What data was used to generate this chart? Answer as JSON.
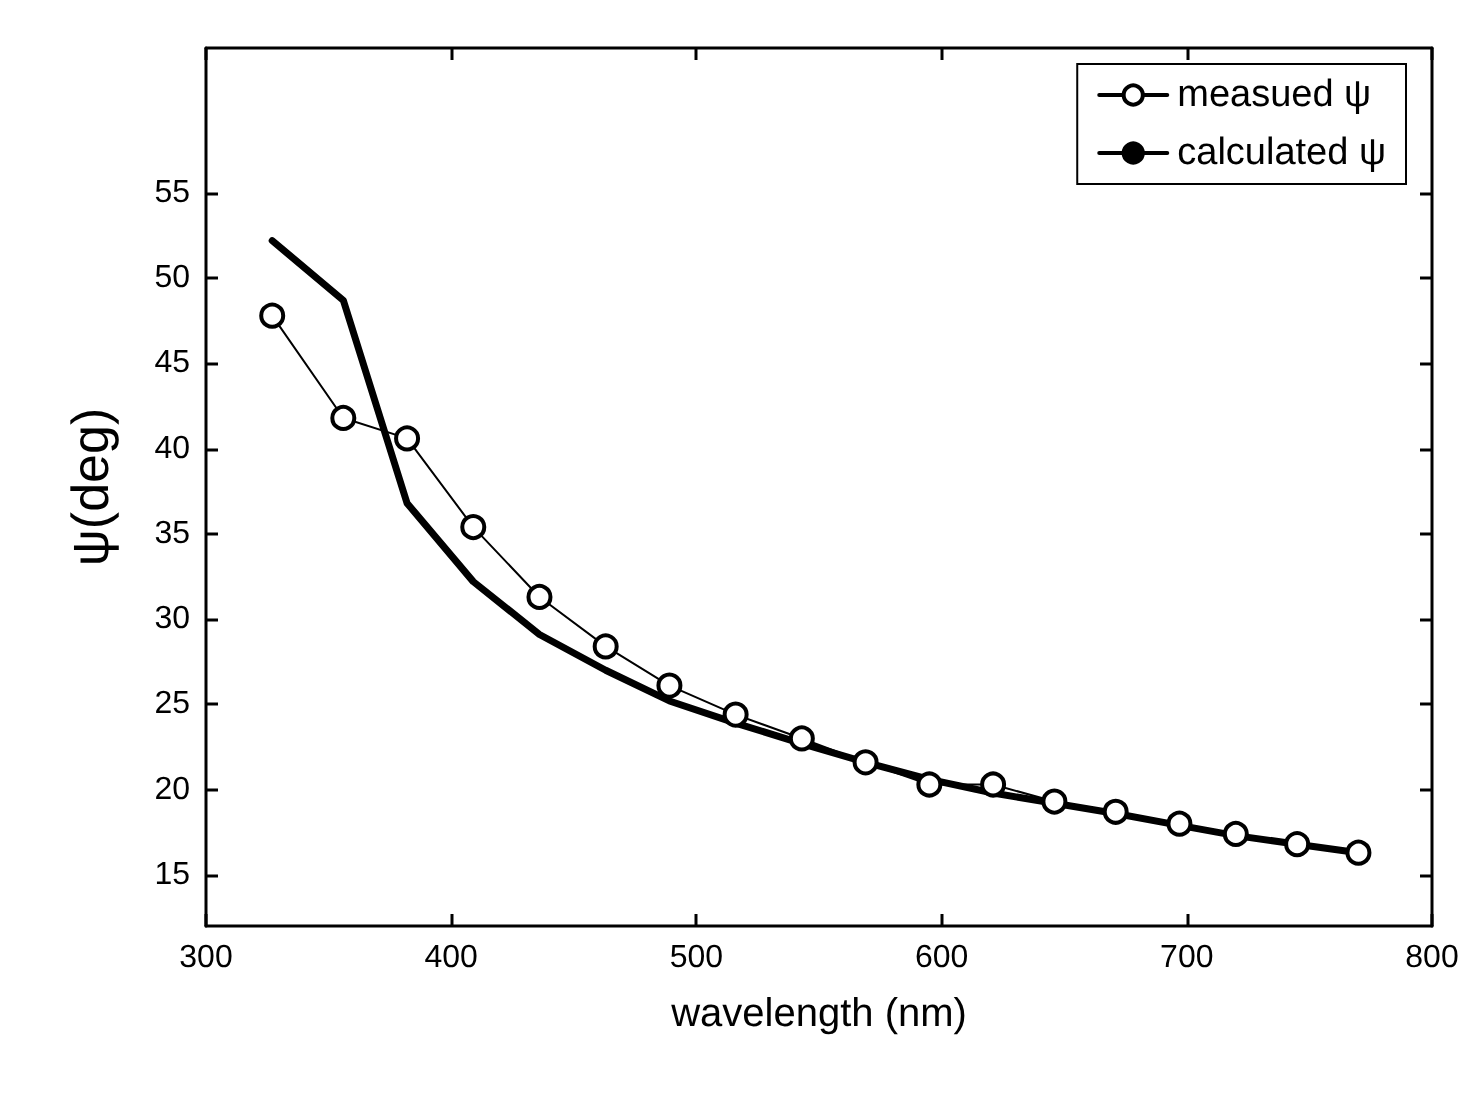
{
  "chart_data": {
    "type": "line",
    "xlabel": "wavelength (nm)",
    "ylabel": "ψ(deg)",
    "xlim": [
      300,
      800
    ],
    "xticks": [
      300,
      400,
      500,
      600,
      700,
      800
    ],
    "ylim": [
      12,
      63.5
    ],
    "yticks": [
      15,
      20,
      25,
      30,
      35,
      40,
      45,
      50,
      55
    ],
    "grid": false,
    "legend": "top right",
    "series": [
      {
        "name": "measued ψ",
        "color": "#000000",
        "marker": "circle",
        "x": [
          327,
          356,
          382,
          409,
          436,
          463,
          489,
          516,
          543,
          569,
          595,
          621,
          646,
          671,
          697,
          720,
          745,
          770
        ],
        "values": [
          47.8,
          41.8,
          40.6,
          35.4,
          31.3,
          28.4,
          26.1,
          24.4,
          23.0,
          21.6,
          20.3,
          20.3,
          19.3,
          18.7,
          18.0,
          17.4,
          16.8,
          16.3
        ]
      },
      {
        "name": "calculated ψ",
        "color": "#000000",
        "marker": "none",
        "x": [
          327,
          356,
          382,
          409,
          436,
          463,
          489,
          516,
          543,
          569,
          595,
          621,
          646,
          671,
          697,
          720,
          745,
          770
        ],
        "values": [
          52.2,
          48.7,
          36.8,
          32.2,
          29.1,
          27.0,
          25.2,
          23.9,
          22.7,
          21.6,
          20.6,
          19.8,
          19.2,
          18.6,
          17.9,
          17.3,
          16.8,
          16.3
        ]
      }
    ]
  }
}
